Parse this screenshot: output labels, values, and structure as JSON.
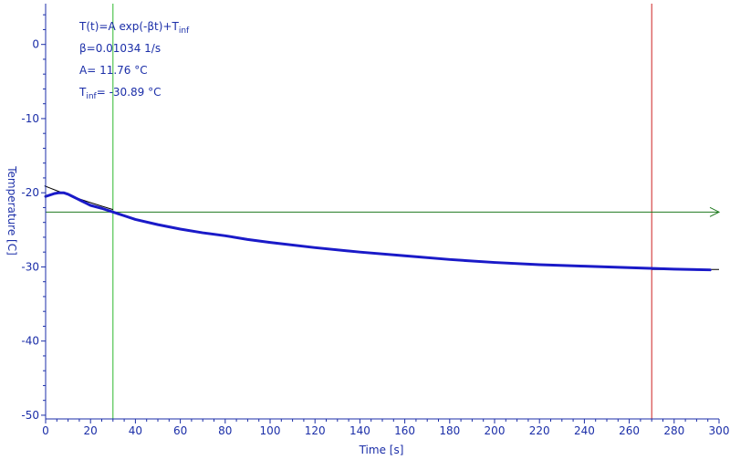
{
  "chart_data": {
    "type": "line",
    "title": "",
    "xlabel": "Time [s]",
    "ylabel": "Temperature [C]",
    "xlim": [
      0,
      300
    ],
    "ylim": [
      -50.5,
      5.5
    ],
    "xticks": [
      0,
      20,
      40,
      60,
      80,
      100,
      120,
      140,
      160,
      180,
      200,
      220,
      240,
      260,
      280,
      300
    ],
    "yticks": [
      0,
      -10,
      -20,
      -30,
      -40,
      -50
    ],
    "grid": false,
    "colors": {
      "axis": "#1b2ea8",
      "data": "#1a1ac8",
      "fit": "#000000",
      "cursor_left": "#2db82d",
      "cursor_right": "#cc2222",
      "h_cursor": "#1f7a1f"
    },
    "series": [
      {
        "kind": "measured",
        "x": [
          0,
          2,
          4,
          6,
          8,
          10,
          12,
          14,
          16,
          18,
          20,
          25,
          30,
          35,
          40,
          50,
          60,
          70,
          80,
          90,
          100,
          120,
          140,
          160,
          180,
          200,
          220,
          240,
          260,
          280,
          296
        ],
        "y": [
          -20.5,
          -20.3,
          -20.1,
          -20.0,
          -20.0,
          -20.2,
          -20.5,
          -20.8,
          -21.1,
          -21.4,
          -21.7,
          -22.1,
          -22.6,
          -23.1,
          -23.6,
          -24.3,
          -24.9,
          -25.4,
          -25.8,
          -26.3,
          -26.7,
          -27.4,
          -28.0,
          -28.5,
          -29.0,
          -29.4,
          -29.7,
          -29.9,
          -30.1,
          -30.3,
          -30.4
        ]
      },
      {
        "kind": "fit",
        "x": [
          -0.5,
          2,
          4,
          6,
          8,
          10,
          12,
          14,
          16,
          18,
          20,
          25,
          30
        ]
      }
    ],
    "fit_params": {
      "A": 11.76,
      "beta": 0.01034,
      "Tinf": -30.89
    },
    "cursors": {
      "vertical_x": [
        30,
        270
      ],
      "horizontal_y": -22.6
    }
  },
  "annotations": {
    "formula_main": "T(t)=A exp(-βt)+T",
    "formula_sub": "inf",
    "beta_line": "β=0.01034 1/s",
    "a_line": "A= 11.76 °C",
    "tinf_main": "T",
    "tinf_sub": "inf",
    "tinf_rest": "= -30.89 °C"
  }
}
